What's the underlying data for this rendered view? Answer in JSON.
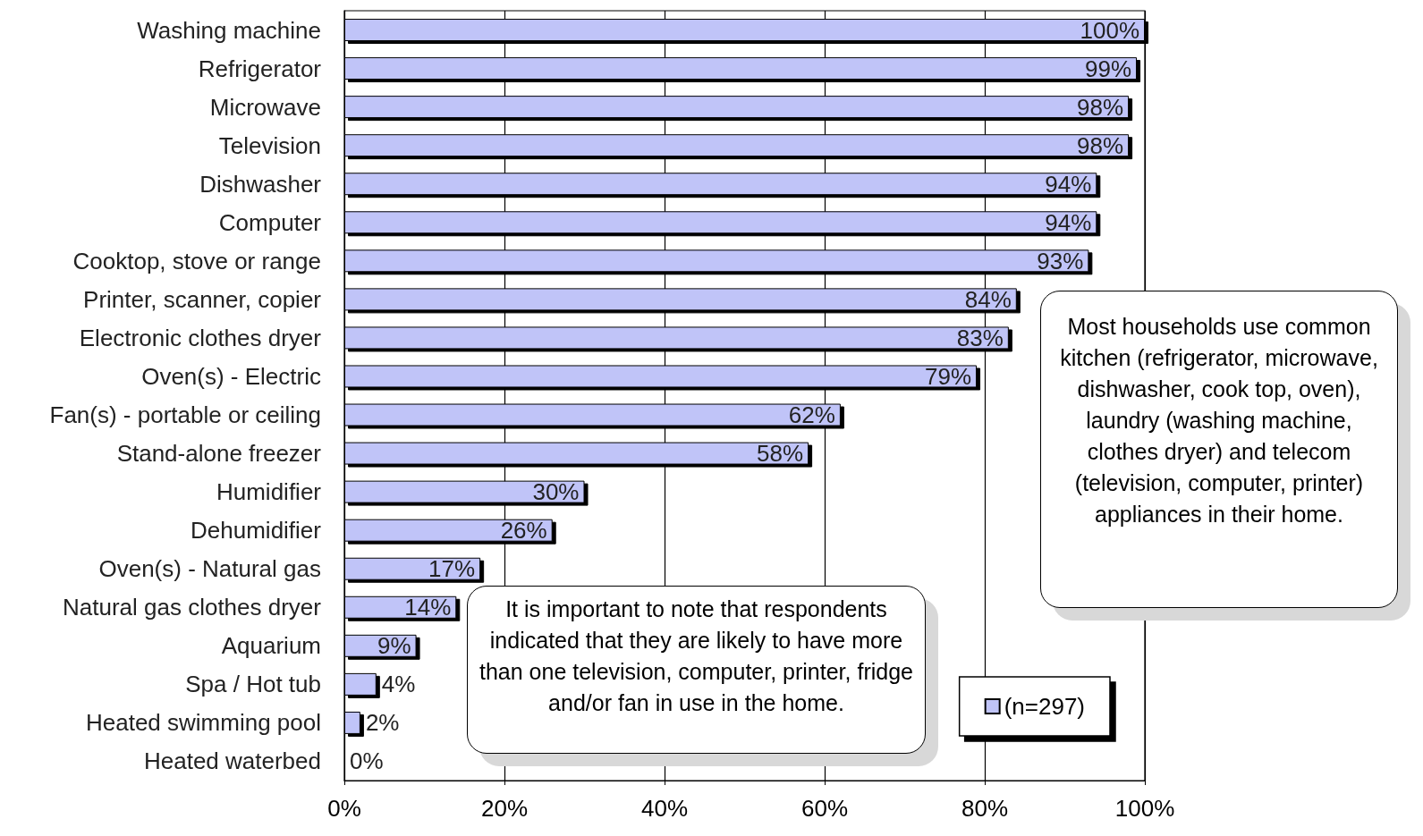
{
  "chart_data": {
    "type": "bar",
    "orientation": "horizontal",
    "categories": [
      "Washing machine",
      "Refrigerator",
      "Microwave",
      "Television",
      "Dishwasher",
      "Computer",
      "Cooktop, stove or range",
      "Printer, scanner, copier",
      "Electronic clothes dryer",
      "Oven(s) - Electric",
      "Fan(s) - portable or ceiling",
      "Stand-alone freezer",
      "Humidifier",
      "Dehumidifier",
      "Oven(s) - Natural gas",
      "Natural gas clothes dryer",
      "Aquarium",
      "Spa / Hot tub",
      "Heated swimming pool",
      "Heated waterbed"
    ],
    "series": [
      {
        "name": "(n=297)",
        "color": "#c0c4f8",
        "values": [
          100,
          99,
          98,
          98,
          94,
          94,
          93,
          84,
          83,
          79,
          62,
          58,
          30,
          26,
          17,
          14,
          9,
          4,
          2,
          0
        ],
        "value_labels": [
          "100%",
          "99%",
          "98%",
          "98%",
          "94%",
          "94%",
          "93%",
          "84%",
          "83%",
          "79%",
          "62%",
          "58%",
          "30%",
          "26%",
          "17%",
          "14%",
          "9%",
          "4%",
          "2%",
          "0%"
        ]
      }
    ],
    "xlim": [
      0,
      100
    ],
    "xticks": [
      {
        "value": 0,
        "label": "0%"
      },
      {
        "value": 20,
        "label": "20%"
      },
      {
        "value": 40,
        "label": "40%"
      },
      {
        "value": 60,
        "label": "60%"
      },
      {
        "value": 80,
        "label": "80%"
      },
      {
        "value": 100,
        "label": "100%"
      }
    ],
    "grid": "x",
    "legend": "bottom right",
    "annotations": [
      "Most households use common kitchen (refrigerator, microwave, dishwasher, cook top, oven), laundry (washing machine, clothes dryer) and telecom (television, computer, printer) appliances in their home.",
      "It is important to note that respondents indicated that they are likely to have more than one television, computer, printer, fridge and/or fan in use in the home."
    ]
  }
}
